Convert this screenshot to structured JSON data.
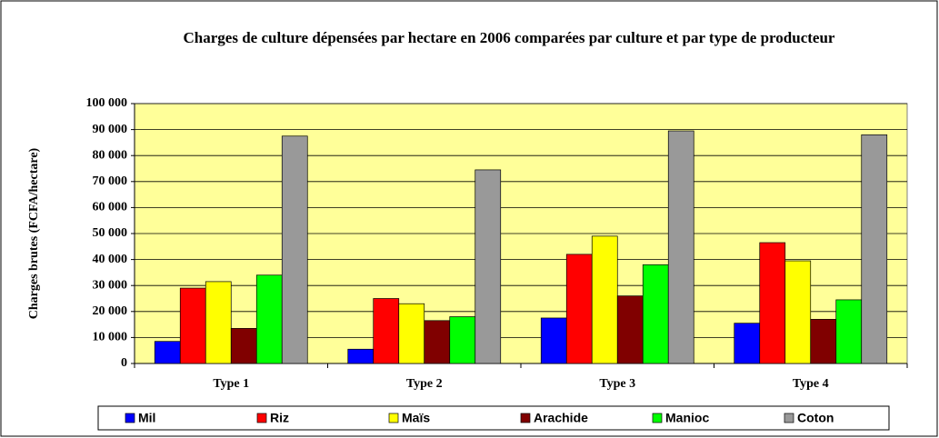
{
  "chart_data": {
    "type": "bar",
    "title": "Charges de culture dépensées par hectare en 2006 comparées par culture et par type de producteur",
    "y_label": "Charges brutes (FCFA/hectare)",
    "categories": [
      "Type 1",
      "Type 2",
      "Type 3",
      "Type 4"
    ],
    "series": [
      {
        "name": "Mil",
        "color": "#0000ff",
        "values": [
          8500,
          5500,
          17500,
          15500
        ]
      },
      {
        "name": "Riz",
        "color": "#ff0000",
        "values": [
          29000,
          25000,
          42000,
          46500
        ]
      },
      {
        "name": "Maïs",
        "color": "#ffff00",
        "values": [
          31500,
          23000,
          49000,
          39500
        ]
      },
      {
        "name": "Arachide",
        "color": "#800000",
        "values": [
          13500,
          16500,
          26000,
          17000
        ]
      },
      {
        "name": "Manioc",
        "color": "#00ff00",
        "values": [
          34000,
          18000,
          38000,
          24500
        ]
      },
      {
        "name": "Coton",
        "color": "#999999",
        "values": [
          87500,
          74500,
          89500,
          88000
        ]
      }
    ],
    "ylim": [
      0,
      100000
    ],
    "yticks": [
      0,
      {
        "value": 10000,
        "label": "10 000"
      },
      {
        "value": 20000,
        "label": "20 000"
      },
      {
        "value": 30000,
        "label": "30 000"
      },
      {
        "value": 40000,
        "label": "40 000"
      },
      {
        "value": 50000,
        "label": "50 000"
      },
      {
        "value": 60000,
        "label": "60 000"
      },
      {
        "value": 70000,
        "label": "70 000"
      },
      {
        "value": 80000,
        "label": "80 000"
      },
      {
        "value": 90000,
        "label": "90 000"
      },
      {
        "value": 100000,
        "label": "100 000"
      }
    ],
    "grid": true,
    "plot_background": "#ffff99",
    "legend": "bottom"
  }
}
